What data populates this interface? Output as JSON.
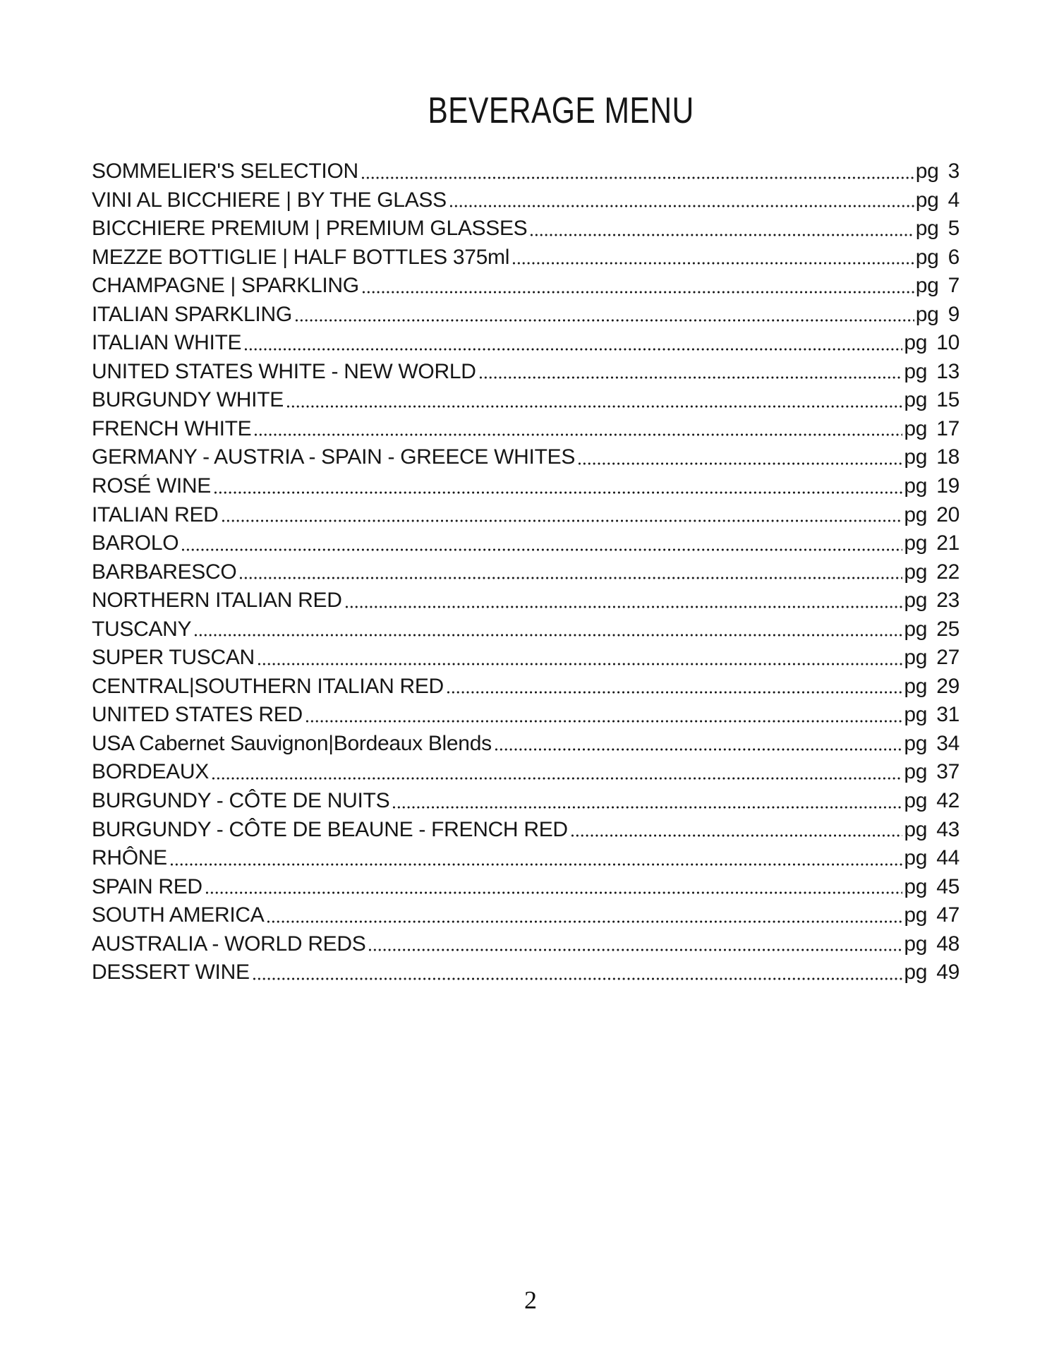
{
  "page": {
    "title": "BEVERAGE MENU",
    "footer_page_number": "2"
  },
  "toc": {
    "entries": [
      {
        "label": "SOMMELIER'S SELECTION",
        "page": "pg 3"
      },
      {
        "label": "VINI AL BICCHIERE | BY THE GLASS",
        "page": "pg 4"
      },
      {
        "label": "BICCHIERE PREMIUM | PREMIUM GLASSES",
        "page": "pg 5"
      },
      {
        "label": "MEZZE BOTTIGLIE | HALF BOTTLES 375ml",
        "page": "pg 6"
      },
      {
        "label": "CHAMPAGNE | SPARKLING",
        "page": "pg 7"
      },
      {
        "label": "ITALIAN SPARKLING",
        "page": "pg 9"
      },
      {
        "label": "ITALIAN WHITE",
        "page": "pg 10"
      },
      {
        "label": "UNITED STATES WHITE - NEW WORLD",
        "page": "pg 13"
      },
      {
        "label": "BURGUNDY WHITE",
        "page": "pg 15"
      },
      {
        "label": "FRENCH WHITE",
        "page": "pg 17"
      },
      {
        "label": "GERMANY - AUSTRIA - SPAIN - GREECE WHITES",
        "page": "pg 18"
      },
      {
        "label": "ROSÉ WINE",
        "page": "pg 19"
      },
      {
        "label": "ITALIAN RED",
        "page": "pg 20"
      },
      {
        "label": "BAROLO",
        "page": "pg 21"
      },
      {
        "label": "BARBARESCO",
        "page": "pg 22"
      },
      {
        "label": "NORTHERN ITALIAN RED",
        "page": "pg 23"
      },
      {
        "label": "TUSCANY",
        "page": "pg 25"
      },
      {
        "label": "SUPER TUSCAN",
        "page": "pg 27"
      },
      {
        "label": "CENTRAL|SOUTHERN ITALIAN RED",
        "page": "pg 29"
      },
      {
        "label": "UNITED STATES RED",
        "page": "pg 31"
      },
      {
        "label": "USA Cabernet Sauvignon|Bordeaux Blends",
        "page": "pg 34"
      },
      {
        "label": "BORDEAUX",
        "page": "pg 37"
      },
      {
        "label": "BURGUNDY - CÔTE DE NUITS",
        "page": "pg 42"
      },
      {
        "label": "BURGUNDY - CÔTE DE BEAUNE - FRENCH RED",
        "page": "pg 43"
      },
      {
        "label": "RHÔNE",
        "page": "pg 44"
      },
      {
        "label": "SPAIN RED",
        "page": "pg 45"
      },
      {
        "label": "SOUTH AMERICA",
        "page": "pg 47"
      },
      {
        "label": "AUSTRALIA - WORLD REDS",
        "page": "pg 48"
      },
      {
        "label": "DESSERT WINE",
        "page": "pg 49"
      }
    ]
  }
}
